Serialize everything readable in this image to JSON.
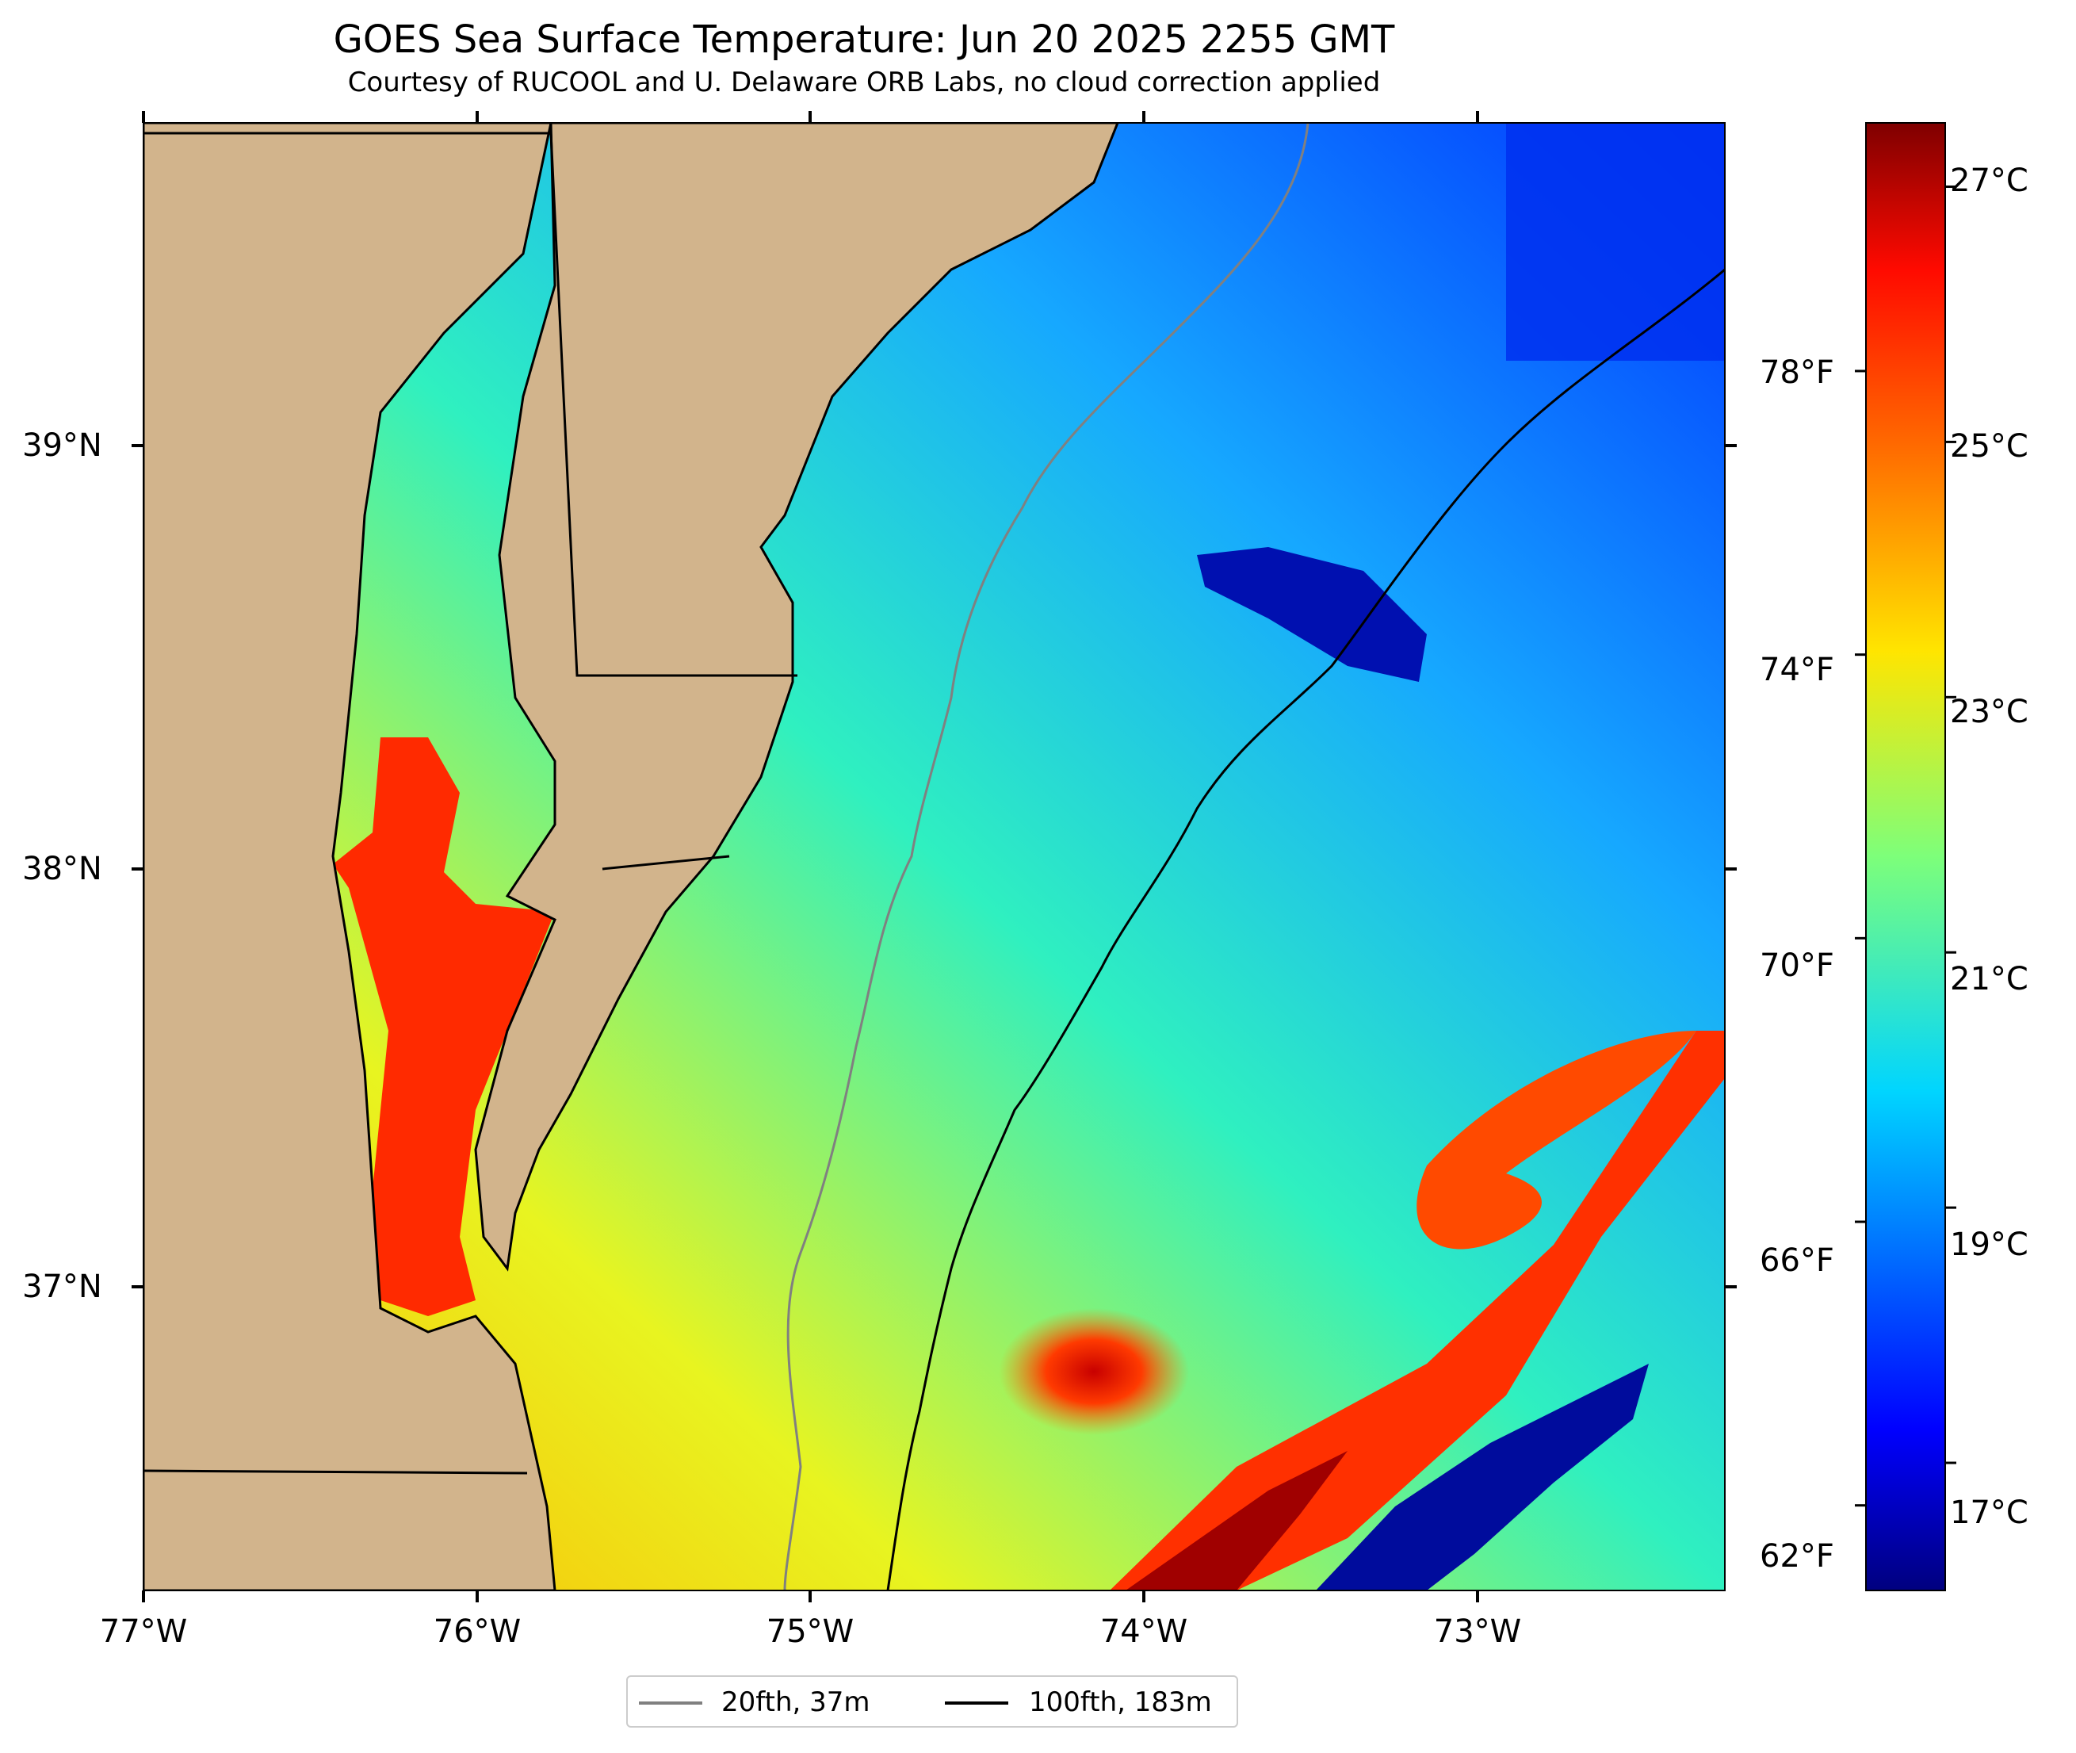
{
  "title": "GOES Sea Surface Temperature: Jun 20 2025 2255 GMT",
  "subtitle": "Courtesy of RUCOOL and U. Delaware ORB Labs, no cloud correction applied",
  "colors": {
    "land": "#d2b48c",
    "coast": "#000000",
    "no_data": "#ffffff",
    "contour_20fth": "#808080",
    "contour_100fth": "#000000"
  },
  "map": {
    "lon_range": [
      -77.0,
      -72.25
    ],
    "lat_range": [
      36.3,
      39.77
    ],
    "x_ticks": [
      {
        "lon": -77,
        "label": "77°W"
      },
      {
        "lon": -76,
        "label": "76°W"
      },
      {
        "lon": -75,
        "label": "75°W"
      },
      {
        "lon": -74,
        "label": "74°W"
      },
      {
        "lon": -73,
        "label": "73°W"
      }
    ],
    "y_ticks": [
      {
        "lat": 39,
        "label": "39°N"
      },
      {
        "lat": 38,
        "label": "38°N"
      },
      {
        "lat": 37,
        "label": "37°N"
      }
    ]
  },
  "colorbar": {
    "colormap": "jet",
    "range_c": [
      16.0,
      27.5
    ],
    "celsius_ticks": [
      {
        "value": 27,
        "label": "27°C"
      },
      {
        "value": 25,
        "label": "25°C"
      },
      {
        "value": 23,
        "label": "23°C"
      },
      {
        "value": 21,
        "label": "21°C"
      },
      {
        "value": 19,
        "label": "19°C"
      },
      {
        "value": 17,
        "label": "17°C"
      }
    ],
    "fahrenheit_ticks": [
      {
        "value": 78,
        "label": "78°F"
      },
      {
        "value": 74,
        "label": "74°F"
      },
      {
        "value": 70,
        "label": "70°F"
      },
      {
        "value": 66,
        "label": "66°F"
      },
      {
        "value": 62,
        "label": "62°F"
      }
    ]
  },
  "legend": {
    "items": [
      {
        "label": "20fth, 37m",
        "color": "#808080"
      },
      {
        "label": "100fth, 183m",
        "color": "#000000"
      }
    ]
  }
}
